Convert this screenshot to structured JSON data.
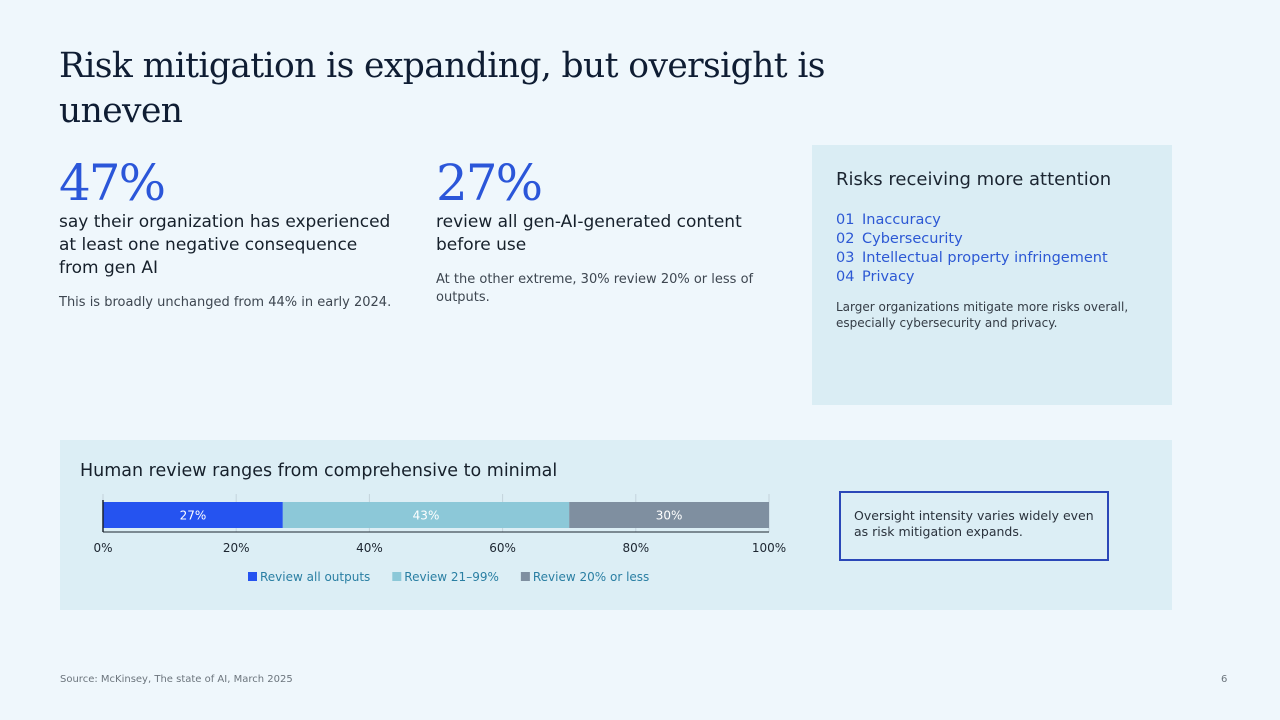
{
  "title": "Risk mitigation is expanding, but oversight is uneven",
  "stats": [
    {
      "value": "47%",
      "lead": "say their organization has experienced at least one negative consequence from gen AI",
      "note": "This is broadly unchanged from 44% in early 2024."
    },
    {
      "value": "27%",
      "lead": "review all gen-AI-generated content before use",
      "note": "At the other extreme, 30% review 20% or less of outputs."
    }
  ],
  "risks": {
    "title": "Risks receiving more attention",
    "items": [
      {
        "num": "01",
        "label": "Inaccuracy"
      },
      {
        "num": "02",
        "label": "Cybersecurity"
      },
      {
        "num": "03",
        "label": "Intellectual property infringement"
      },
      {
        "num": "04",
        "label": "Privacy"
      }
    ],
    "note": "Larger organizations mitigate more risks overall, especially cybersecurity and privacy."
  },
  "review": {
    "title": "Human review ranges from comprehensive to minimal",
    "callout": "Oversight intensity varies widely even as risk mitigation expands."
  },
  "chart_data": {
    "type": "bar",
    "orientation": "horizontal",
    "stacked": true,
    "title": "Human review ranges from comprehensive to minimal",
    "xlim": [
      0,
      100
    ],
    "x_ticks": [
      "0%",
      "20%",
      "40%",
      "60%",
      "80%",
      "100%"
    ],
    "grid": true,
    "legend_position": "bottom",
    "series": [
      {
        "name": "Review all outputs",
        "value": 27,
        "label": "27%",
        "color": "#2553f0"
      },
      {
        "name": "Review 21–99%",
        "value": 43,
        "label": "43%",
        "color": "#8cc8d8"
      },
      {
        "name": "Review 20% or less",
        "value": 30,
        "label": "30%",
        "color": "#7f8fa0"
      }
    ]
  },
  "footer": {
    "source": "Source: McKinsey, The state of AI, March 2025",
    "page": "6"
  }
}
